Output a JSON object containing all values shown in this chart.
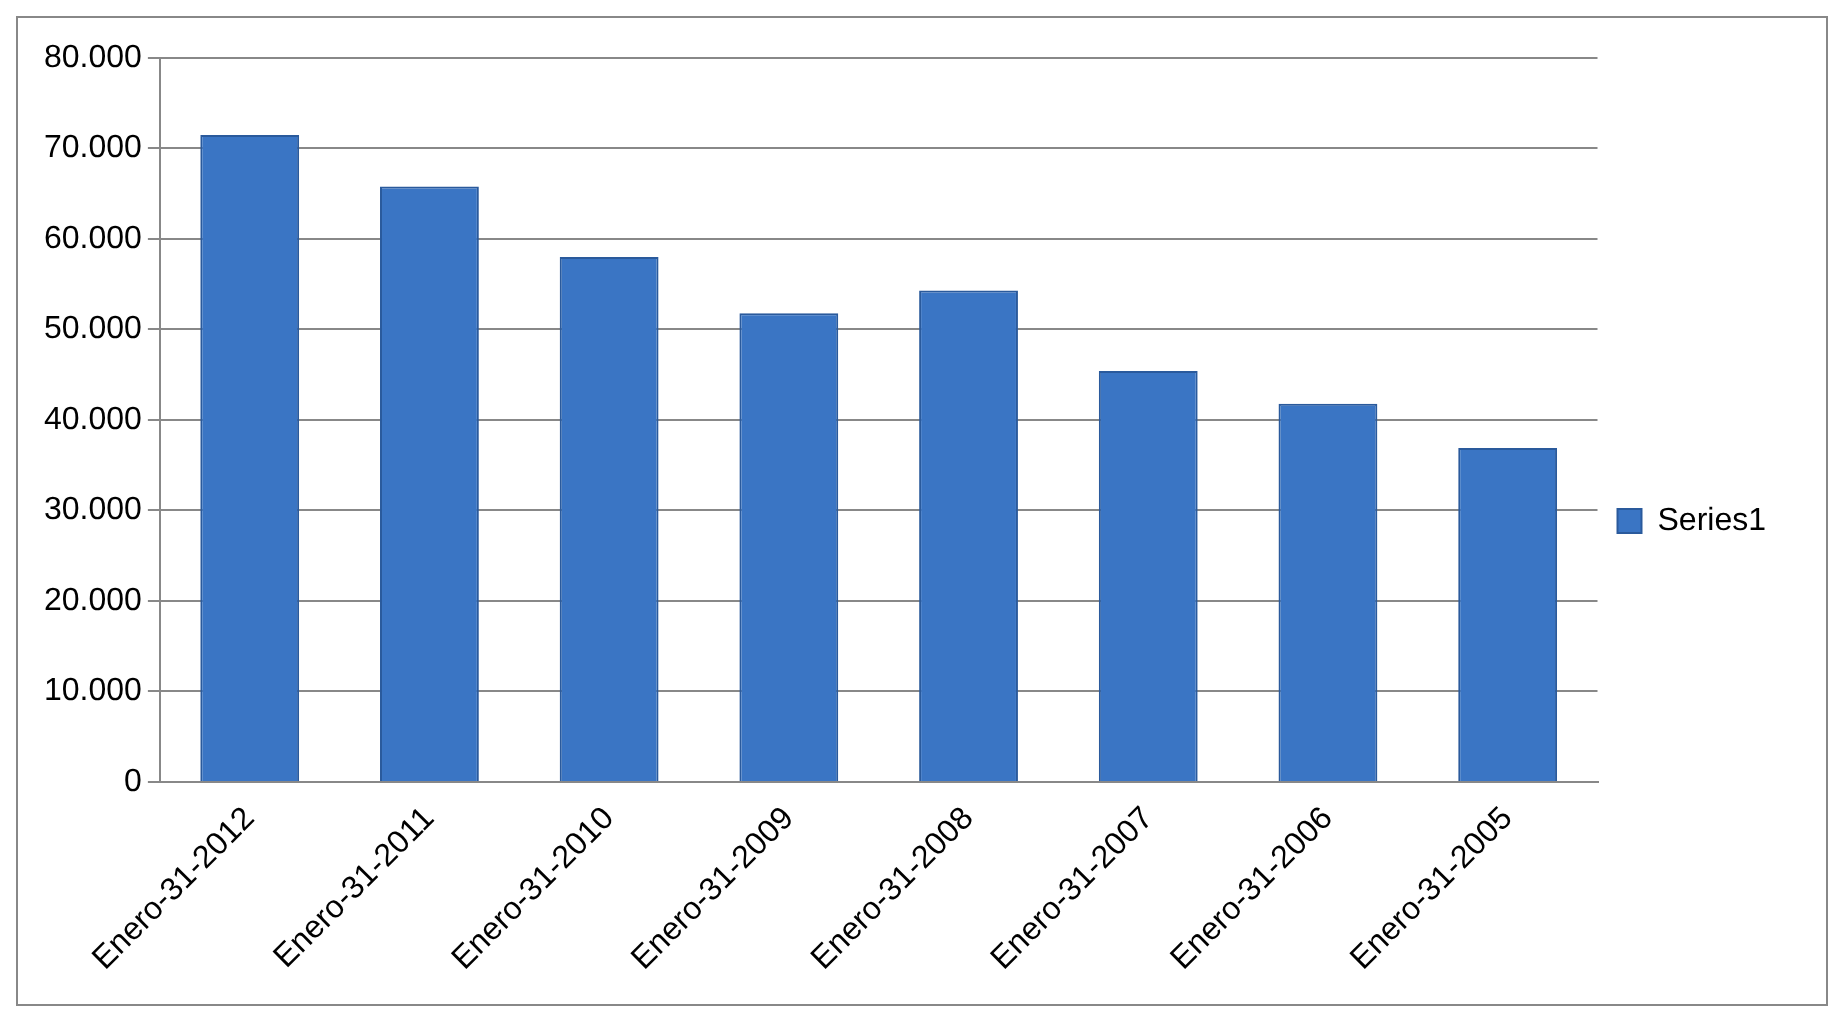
{
  "chart_data": {
    "type": "bar",
    "categories": [
      "Enero-31-2012",
      "Enero-31-2011",
      "Enero-31-2010",
      "Enero-31-2009",
      "Enero-31-2008",
      "Enero-31-2007",
      "Enero-31-2006",
      "Enero-31-2005"
    ],
    "series": [
      {
        "name": "Series1",
        "color": "#3a75c4",
        "values": [
          71500,
          65800,
          58000,
          51800,
          54300,
          45400,
          41800,
          36900
        ]
      }
    ],
    "ylim": [
      0,
      80000
    ],
    "yticks": [
      {
        "value": 0,
        "label": "0"
      },
      {
        "value": 10000,
        "label": "10.000"
      },
      {
        "value": 20000,
        "label": "20.000"
      },
      {
        "value": 30000,
        "label": "30.000"
      },
      {
        "value": 40000,
        "label": "40.000"
      },
      {
        "value": 50000,
        "label": "50.000"
      },
      {
        "value": 60000,
        "label": "60.000"
      },
      {
        "value": 70000,
        "label": "70.000"
      },
      {
        "value": 80000,
        "label": "80.000"
      }
    ],
    "grid": "y",
    "legend": "right"
  }
}
